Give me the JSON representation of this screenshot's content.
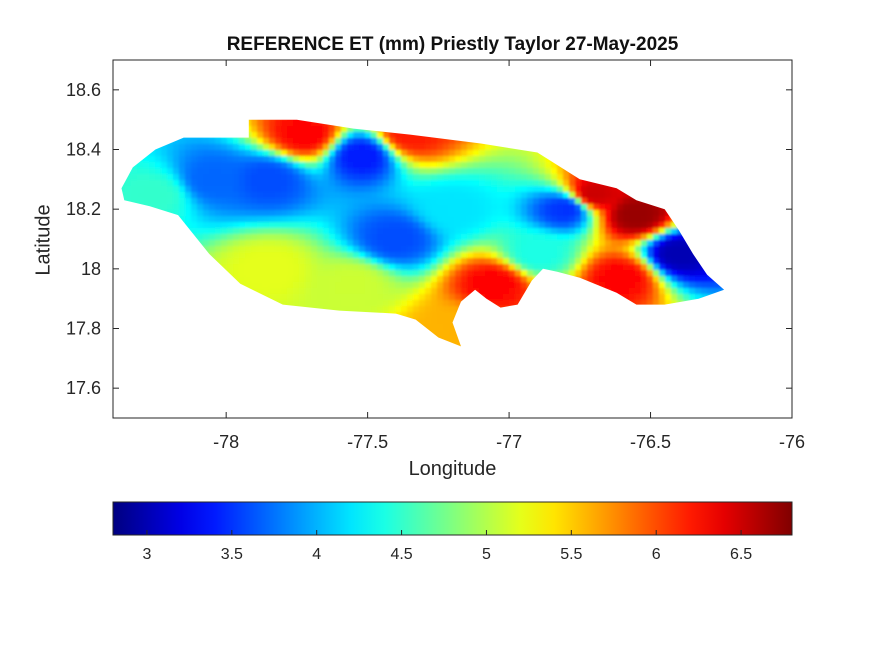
{
  "chart_data": [
    {
      "type": "heatmap",
      "title": "REFERENCE ET (mm) Priestly Taylor 27-May-2025",
      "xlabel": "Longitude",
      "ylabel": "Latitude",
      "xlim": [
        -78.4,
        -76
      ],
      "ylim": [
        17.5,
        18.7
      ],
      "xticks": [
        -78,
        -77.5,
        -77,
        -76.5,
        -76
      ],
      "yticks": [
        17.6,
        17.8,
        18,
        18.2,
        18.4,
        18.6
      ],
      "grid": false,
      "colormap": "jet",
      "color_range": [
        2.8,
        6.8
      ],
      "region_outline": [
        [
          -78.37,
          18.27
        ],
        [
          -78.33,
          18.34
        ],
        [
          -78.25,
          18.4
        ],
        [
          -78.15,
          18.44
        ],
        [
          -78.05,
          18.44
        ],
        [
          -77.92,
          18.44
        ],
        [
          -77.92,
          18.5
        ],
        [
          -77.75,
          18.5
        ],
        [
          -77.55,
          18.47
        ],
        [
          -77.35,
          18.45
        ],
        [
          -77.1,
          18.42
        ],
        [
          -76.9,
          18.39
        ],
        [
          -76.75,
          18.3
        ],
        [
          -76.62,
          18.27
        ],
        [
          -76.55,
          18.23
        ],
        [
          -76.45,
          18.2
        ],
        [
          -76.4,
          18.13
        ],
        [
          -76.35,
          18.05
        ],
        [
          -76.3,
          17.98
        ],
        [
          -76.24,
          17.93
        ],
        [
          -76.33,
          17.9
        ],
        [
          -76.45,
          17.88
        ],
        [
          -76.55,
          17.88
        ],
        [
          -76.62,
          17.92
        ],
        [
          -76.75,
          17.97
        ],
        [
          -76.83,
          17.99
        ],
        [
          -76.88,
          18.0
        ],
        [
          -76.92,
          17.96
        ],
        [
          -76.97,
          17.88
        ],
        [
          -77.03,
          17.87
        ],
        [
          -77.08,
          17.9
        ],
        [
          -77.12,
          17.93
        ],
        [
          -77.17,
          17.89
        ],
        [
          -77.2,
          17.82
        ],
        [
          -77.17,
          17.74
        ],
        [
          -77.25,
          17.77
        ],
        [
          -77.33,
          17.83
        ],
        [
          -77.4,
          17.85
        ],
        [
          -77.6,
          17.86
        ],
        [
          -77.8,
          17.88
        ],
        [
          -77.95,
          17.95
        ],
        [
          -78.06,
          18.05
        ],
        [
          -78.17,
          18.18
        ],
        [
          -78.27,
          18.21
        ],
        [
          -78.36,
          18.23
        ]
      ],
      "value_field": [
        {
          "lon": -78.25,
          "lat": 18.25,
          "et": 4.5
        },
        {
          "lon": -78.05,
          "lat": 18.3,
          "et": 3.7
        },
        {
          "lon": -77.85,
          "lat": 18.3,
          "et": 3.6
        },
        {
          "lon": -77.72,
          "lat": 18.45,
          "et": 6.3
        },
        {
          "lon": -77.52,
          "lat": 18.38,
          "et": 3.4
        },
        {
          "lon": -77.35,
          "lat": 18.45,
          "et": 6.2
        },
        {
          "lon": -77.4,
          "lat": 18.1,
          "et": 3.6
        },
        {
          "lon": -77.2,
          "lat": 18.2,
          "et": 4.2
        },
        {
          "lon": -77.85,
          "lat": 18.0,
          "et": 5.2
        },
        {
          "lon": -77.55,
          "lat": 17.95,
          "et": 5.1
        },
        {
          "lon": -77.2,
          "lat": 17.8,
          "et": 5.6
        },
        {
          "lon": -77.05,
          "lat": 17.95,
          "et": 6.3
        },
        {
          "lon": -76.8,
          "lat": 18.2,
          "et": 3.5
        },
        {
          "lon": -76.7,
          "lat": 18.25,
          "et": 6.5
        },
        {
          "lon": -76.55,
          "lat": 18.18,
          "et": 6.7
        },
        {
          "lon": -76.4,
          "lat": 18.05,
          "et": 3.0
        },
        {
          "lon": -76.6,
          "lat": 17.97,
          "et": 6.3
        },
        {
          "lon": -76.9,
          "lat": 18.05,
          "et": 4.4
        }
      ],
      "colorbar": {
        "orientation": "horizontal",
        "ticks": [
          3,
          3.5,
          4,
          4.5,
          5,
          5.5,
          6,
          6.5
        ]
      }
    }
  ]
}
